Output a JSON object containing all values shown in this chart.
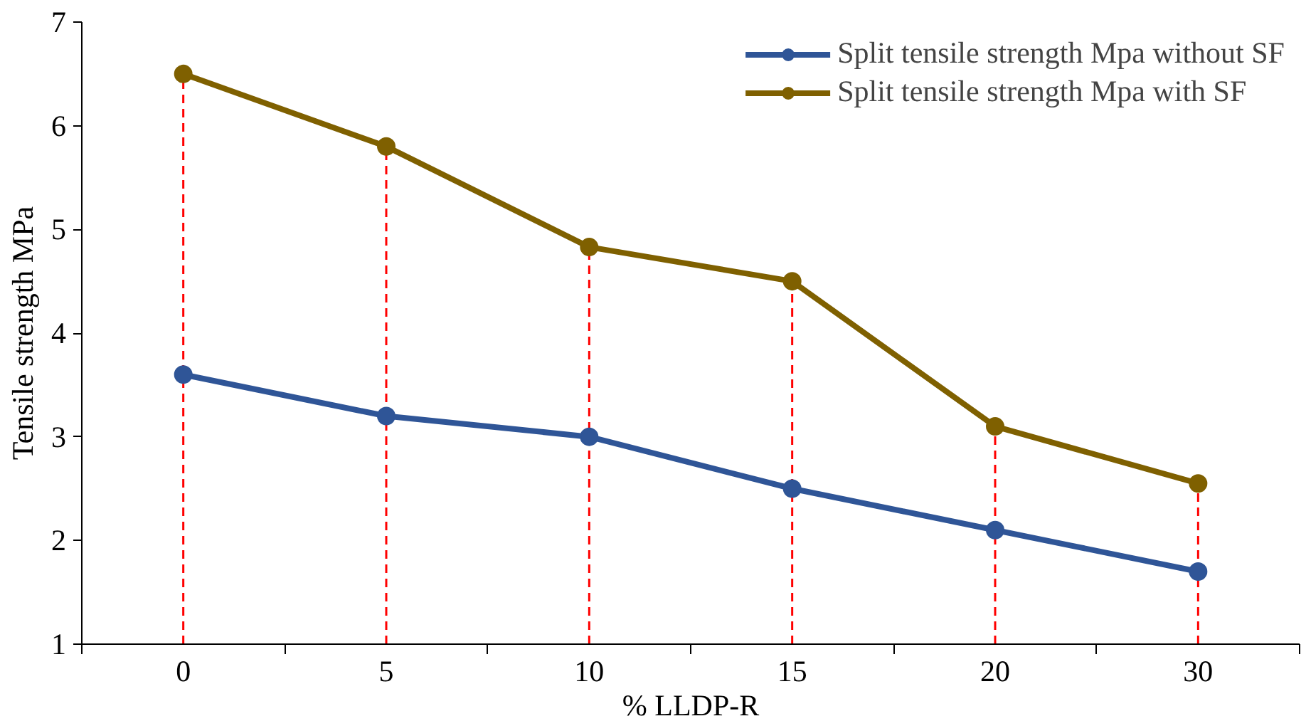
{
  "chart_data": {
    "type": "line",
    "xlabel": "% LLDP-R",
    "ylabel": "Tensile strength MPa",
    "categories": [
      "0",
      "5",
      "10",
      "15",
      "20",
      "30"
    ],
    "series": [
      {
        "name": "Split tensile strength Mpa without SF",
        "color": "#2f5597",
        "values": [
          3.6,
          3.2,
          3.0,
          2.5,
          2.1,
          1.7
        ]
      },
      {
        "name": "Split tensile strength Mpa with SF",
        "color": "#7f6000",
        "values": [
          6.5,
          5.8,
          4.83,
          4.5,
          3.1,
          2.55
        ]
      }
    ],
    "ylim": [
      1,
      7
    ],
    "yticks": [
      1,
      2,
      3,
      4,
      5,
      6,
      7
    ],
    "grid": false,
    "legend": "top right",
    "marker": "circle",
    "line_style": "solid",
    "ref_lines": [
      {
        "axis": "x",
        "value": "0",
        "color": "#ff0000",
        "line_style": "dashed"
      },
      {
        "axis": "x",
        "value": "5",
        "color": "#ff0000",
        "line_style": "dashed"
      },
      {
        "axis": "x",
        "value": "10",
        "color": "#ff0000",
        "line_style": "dashed"
      },
      {
        "axis": "x",
        "value": "15",
        "color": "#ff0000",
        "line_style": "dashed"
      },
      {
        "axis": "x",
        "value": "20",
        "color": "#ff0000",
        "line_style": "dashed"
      },
      {
        "axis": "x",
        "value": "30",
        "color": "#ff0000",
        "line_style": "dashed"
      }
    ]
  }
}
